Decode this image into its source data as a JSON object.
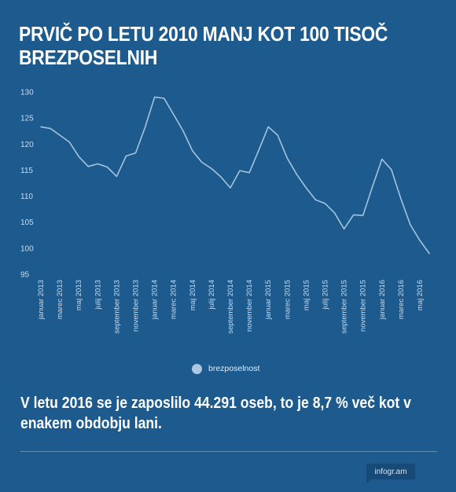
{
  "title_lines": [
    "PRVIČ PO LETU 2010 MANJ KOT 100 TISOČ",
    "BREZPOSELNIH"
  ],
  "subtitle_lines": [
    "V letu 2016 se je zaposlilo 44.291 oseb, to je 8,7 % več kot v",
    "enakem obdobju lani."
  ],
  "brand": "infogr.am",
  "colors": {
    "background": "#1d5a8e",
    "line": "#a3c4df",
    "legend_dot": "#aac8e1"
  },
  "chart_data": {
    "type": "line",
    "title": "PRVIČ PO LETU 2010 MANJ KOT 100 TISOČ BREZPOSELNIH",
    "xlabel": "",
    "ylabel": "",
    "ylim": [
      95,
      130
    ],
    "yticks": [
      95,
      100,
      105,
      110,
      115,
      120,
      125,
      130
    ],
    "grid": false,
    "legend_position": "bottom-center",
    "x_tick_labels": [
      "januar 2013",
      "marec 2013",
      "maj 2013",
      "julij 2013",
      "september 2013",
      "november 2013",
      "januar 2014",
      "marec 2014",
      "maj 2014",
      "julij 2014",
      "september 2014",
      "november 2014",
      "januar 2015",
      "marec 2015",
      "maj 2015",
      "julij 2015",
      "september 2015",
      "november 2015",
      "januar 2016",
      "marec 2016",
      "maj 2016"
    ],
    "categories": [
      "januar 2013",
      "februar 2013",
      "marec 2013",
      "april 2013",
      "maj 2013",
      "junij 2013",
      "julij 2013",
      "avgust 2013",
      "september 2013",
      "oktober 2013",
      "november 2013",
      "december 2013",
      "januar 2014",
      "februar 2014",
      "marec 2014",
      "april 2014",
      "maj 2014",
      "junij 2014",
      "julij 2014",
      "avgust 2014",
      "september 2014",
      "oktober 2014",
      "november 2014",
      "december 2014",
      "januar 2015",
      "februar 2015",
      "marec 2015",
      "april 2015",
      "maj 2015",
      "junij 2015",
      "julij 2015",
      "avgust 2015",
      "september 2015",
      "oktober 2015",
      "november 2015",
      "december 2015",
      "januar 2016",
      "februar 2016",
      "marec 2016",
      "april 2016",
      "maj 2016",
      "junij 2016"
    ],
    "series": [
      {
        "name": "brezposelnost",
        "values": [
          123.3,
          123.0,
          121.7,
          120.4,
          117.6,
          115.7,
          116.2,
          115.6,
          113.8,
          117.7,
          118.3,
          123.2,
          129.0,
          128.8,
          125.7,
          122.6,
          118.7,
          116.5,
          115.3,
          113.7,
          111.6,
          114.9,
          114.5,
          118.8,
          123.3,
          121.7,
          117.3,
          114.2,
          111.6,
          109.3,
          108.6,
          106.8,
          103.7,
          106.4,
          106.3,
          111.8,
          117.1,
          115.1,
          109.5,
          104.5,
          101.5,
          99.0
        ]
      }
    ]
  }
}
